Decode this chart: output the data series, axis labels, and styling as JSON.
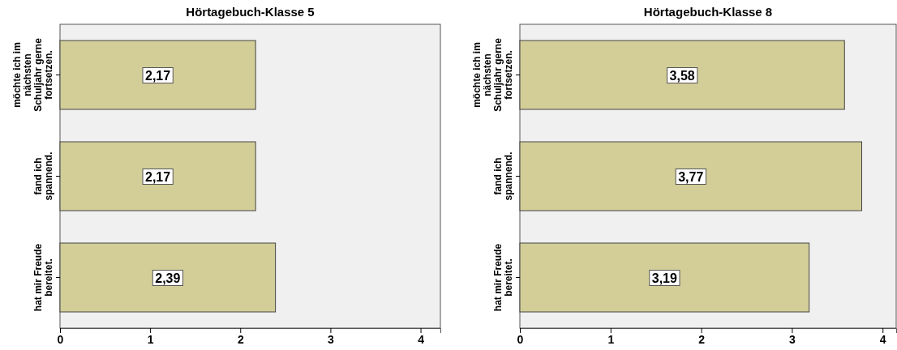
{
  "chart_data": [
    {
      "type": "bar",
      "orientation": "horizontal",
      "title": "Hörtagebuch-Klasse 5",
      "categories": [
        "möchte ich im nächsten Schuljahr gerne fortsetzen.",
        "fand ich spannend.",
        "hat mir Freude bereitet."
      ],
      "values": [
        2.17,
        2.17,
        2.39
      ],
      "value_labels": [
        "2,17",
        "2,17",
        "2,39"
      ],
      "color": "#d3ce98",
      "xlim": [
        0,
        4.22
      ],
      "xticks": [
        0,
        1,
        2,
        3,
        4
      ],
      "grid": false
    },
    {
      "type": "bar",
      "orientation": "horizontal",
      "title": "Hörtagebuch-Klasse 8",
      "categories": [
        "möchte ich im nächsten Schuljahr gerne fortsetzen.",
        "fand ich spannend.",
        "hat mir Freude bereitet."
      ],
      "values": [
        3.58,
        3.77,
        3.19
      ],
      "value_labels": [
        "3,58",
        "3,77",
        "3,19"
      ],
      "color": "#d3ce98",
      "xlim": [
        0,
        4.15
      ],
      "xticks": [
        0,
        1,
        2,
        3,
        4
      ],
      "grid": false
    }
  ]
}
